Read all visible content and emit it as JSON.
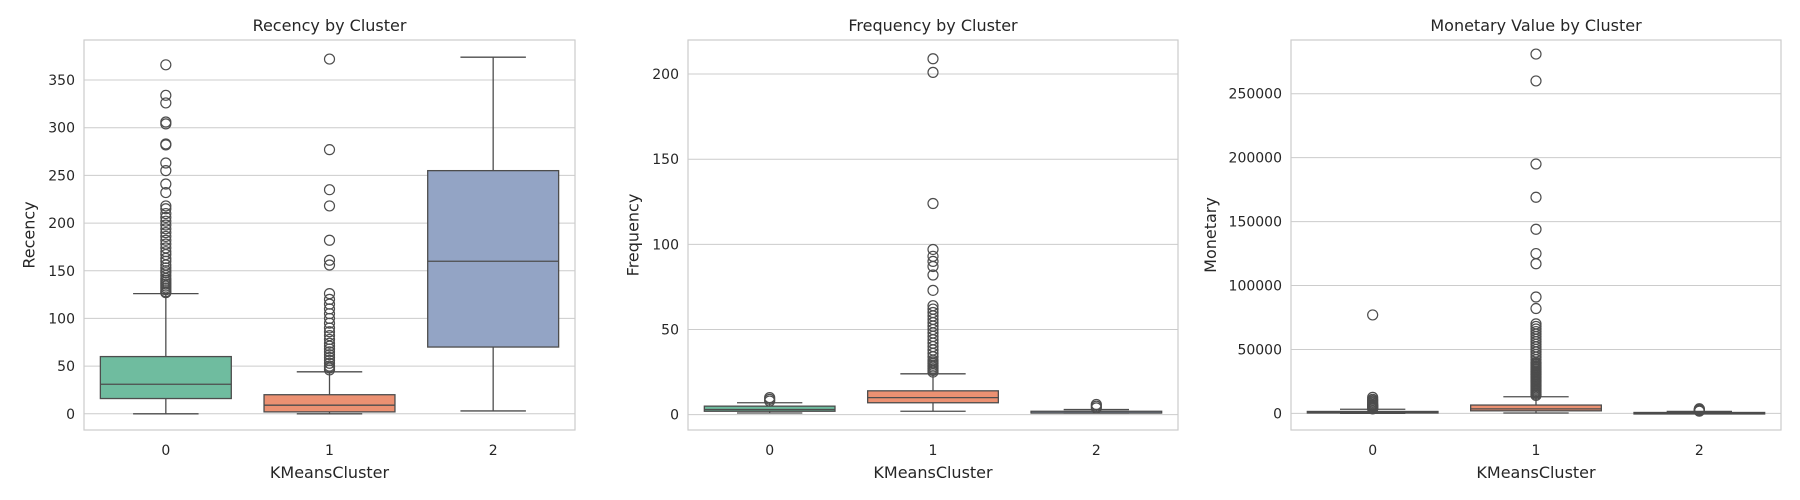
{
  "chart_data": [
    {
      "type": "box",
      "title": "Recency by Cluster",
      "xlabel": "KMeansCluster",
      "ylabel": "Recency",
      "categories": [
        "0",
        "1",
        "2"
      ],
      "colors": [
        "#6fbc9f",
        "#ec9172",
        "#93a4c5"
      ],
      "ylim": [
        -17,
        392
      ],
      "yticks": [
        0,
        50,
        100,
        150,
        200,
        250,
        300,
        350
      ],
      "boxes": [
        {
          "whisker_low": 0,
          "q1": 16,
          "median": 31,
          "q3": 60,
          "whisker_high": 126,
          "outliers": [
            127,
            128,
            130,
            132,
            134,
            136,
            138,
            140,
            142,
            145,
            148,
            150,
            153,
            156,
            160,
            163,
            167,
            170,
            174,
            178,
            182,
            186,
            190,
            194,
            198,
            202,
            206,
            210,
            215,
            218,
            232,
            241,
            255,
            263,
            282,
            283,
            304,
            306,
            326,
            334,
            366
          ]
        },
        {
          "whisker_low": 0,
          "q1": 2,
          "median": 9,
          "q3": 20,
          "whisker_high": 44,
          "outliers": [
            46,
            48,
            50,
            53,
            56,
            59,
            62,
            65,
            68,
            71,
            74,
            78,
            82,
            86,
            90,
            95,
            100,
            105,
            110,
            115,
            120,
            126,
            156,
            161,
            182,
            218,
            235,
            277,
            372
          ]
        },
        {
          "whisker_low": 3,
          "q1": 70,
          "median": 160,
          "q3": 255,
          "whisker_high": 374,
          "outliers": []
        }
      ]
    },
    {
      "type": "box",
      "title": "Frequency by Cluster",
      "xlabel": "KMeansCluster",
      "ylabel": "Frequency",
      "categories": [
        "0",
        "1",
        "2"
      ],
      "colors": [
        "#6fbc9f",
        "#ec9172",
        "#93a4c5"
      ],
      "ylim": [
        -9,
        220
      ],
      "yticks": [
        0,
        50,
        100,
        150,
        200
      ],
      "boxes": [
        {
          "whisker_low": 1,
          "q1": 2,
          "median": 3,
          "q3": 5,
          "whisker_high": 7,
          "outliers": [
            8,
            9,
            10
          ]
        },
        {
          "whisker_low": 2,
          "q1": 7,
          "median": 10,
          "q3": 14,
          "whisker_high": 24,
          "outliers": [
            25,
            26,
            27,
            28,
            29,
            30,
            31,
            32,
            34,
            36,
            38,
            40,
            42,
            44,
            46,
            48,
            50,
            52,
            54,
            56,
            58,
            60,
            62,
            64,
            73,
            82,
            87,
            90,
            93,
            97,
            124,
            201,
            209
          ]
        },
        {
          "whisker_low": 1,
          "q1": 1,
          "median": 1,
          "q3": 2,
          "whisker_high": 3,
          "outliers": [
            4,
            5,
            6
          ]
        }
      ]
    },
    {
      "type": "box",
      "title": "Monetary Value by Cluster",
      "xlabel": "KMeansCluster",
      "ylabel": "Monetary",
      "categories": [
        "0",
        "1",
        "2"
      ],
      "colors": [
        "#6fbc9f",
        "#ec9172",
        "#93a4c5"
      ],
      "ylim": [
        -13000,
        292000
      ],
      "yticks": [
        0,
        50000,
        100000,
        150000,
        200000,
        250000
      ],
      "boxes": [
        {
          "whisker_low": 0,
          "q1": 300,
          "median": 700,
          "q3": 1500,
          "whisker_high": 3200,
          "outliers": [
            3500,
            4000,
            4500,
            5000,
            5500,
            6000,
            6500,
            7000,
            8000,
            9000,
            10000,
            11000,
            12500,
            77000
          ]
        },
        {
          "whisker_low": 300,
          "q1": 2000,
          "median": 3500,
          "q3": 6500,
          "whisker_high": 13000,
          "outliers": [
            14000,
            15000,
            16000,
            17000,
            18000,
            19000,
            20000,
            21000,
            22000,
            23000,
            24000,
            25000,
            26000,
            27000,
            28000,
            29000,
            30000,
            31000,
            32000,
            33000,
            34000,
            35000,
            36000,
            37000,
            38000,
            39000,
            40000,
            42000,
            44000,
            46000,
            48000,
            50000,
            52000,
            54000,
            56000,
            58000,
            60000,
            62000,
            64000,
            66000,
            68000,
            70000,
            82000,
            91000,
            117000,
            125000,
            144000,
            169000,
            195000,
            260000,
            281000
          ]
        },
        {
          "whisker_low": 0,
          "q1": 150,
          "median": 350,
          "q3": 700,
          "whisker_high": 1500,
          "outliers": [
            1700,
            2000,
            2400,
            2800,
            3200,
            3600
          ]
        }
      ]
    }
  ]
}
